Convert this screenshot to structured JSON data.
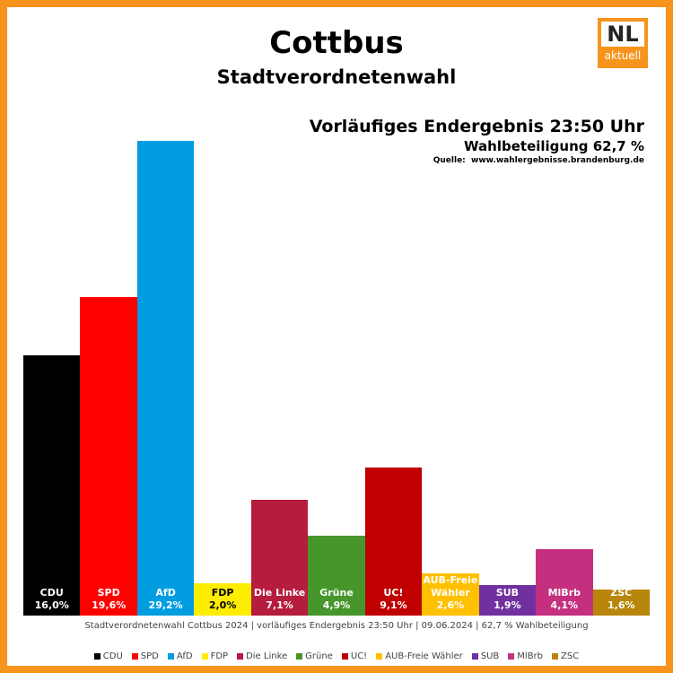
{
  "chart_data": {
    "type": "bar",
    "title": "Cottbus",
    "subtitle": "Stadtverordnetenwahl",
    "status": "Vorläufiges Endergebnis 23:50 Uhr",
    "turnout": "Wahlbeteiligung 62,7 %",
    "source": "Quelle:  www.wahlergebnisse.brandenburg.de",
    "footer": "Stadtverordnetenwahl Cottbus 2024 | vorläufiges Endergebnis 23:50 Uhr | 09.06.2024 | 62,7 % Wahlbeteiligung",
    "logo": {
      "top": "NL",
      "bottom": "aktuell"
    },
    "categories": [
      "CDU",
      "SPD",
      "AfD",
      "FDP",
      "Die Linke",
      "Grüne",
      "UC!",
      "AUB-Freie Wähler",
      "SUB",
      "MlBrb",
      "ZSC"
    ],
    "values": [
      16.0,
      19.6,
      29.2,
      2.0,
      7.1,
      4.9,
      9.1,
      2.6,
      1.9,
      4.1,
      1.6
    ],
    "value_labels": [
      "16,0%",
      "19,6%",
      "29,2%",
      "2,0%",
      "7,1%",
      "4,9%",
      "9,1%",
      "2,6%",
      "1,9%",
      "4,1%",
      "1,6%"
    ],
    "colors": [
      "#000000",
      "#ff0000",
      "#009ee0",
      "#ffed00",
      "#b51c3e",
      "#46962b",
      "#c00000",
      "#ffc000",
      "#7030a0",
      "#c4307f",
      "#b8860b"
    ],
    "legend": true
  }
}
